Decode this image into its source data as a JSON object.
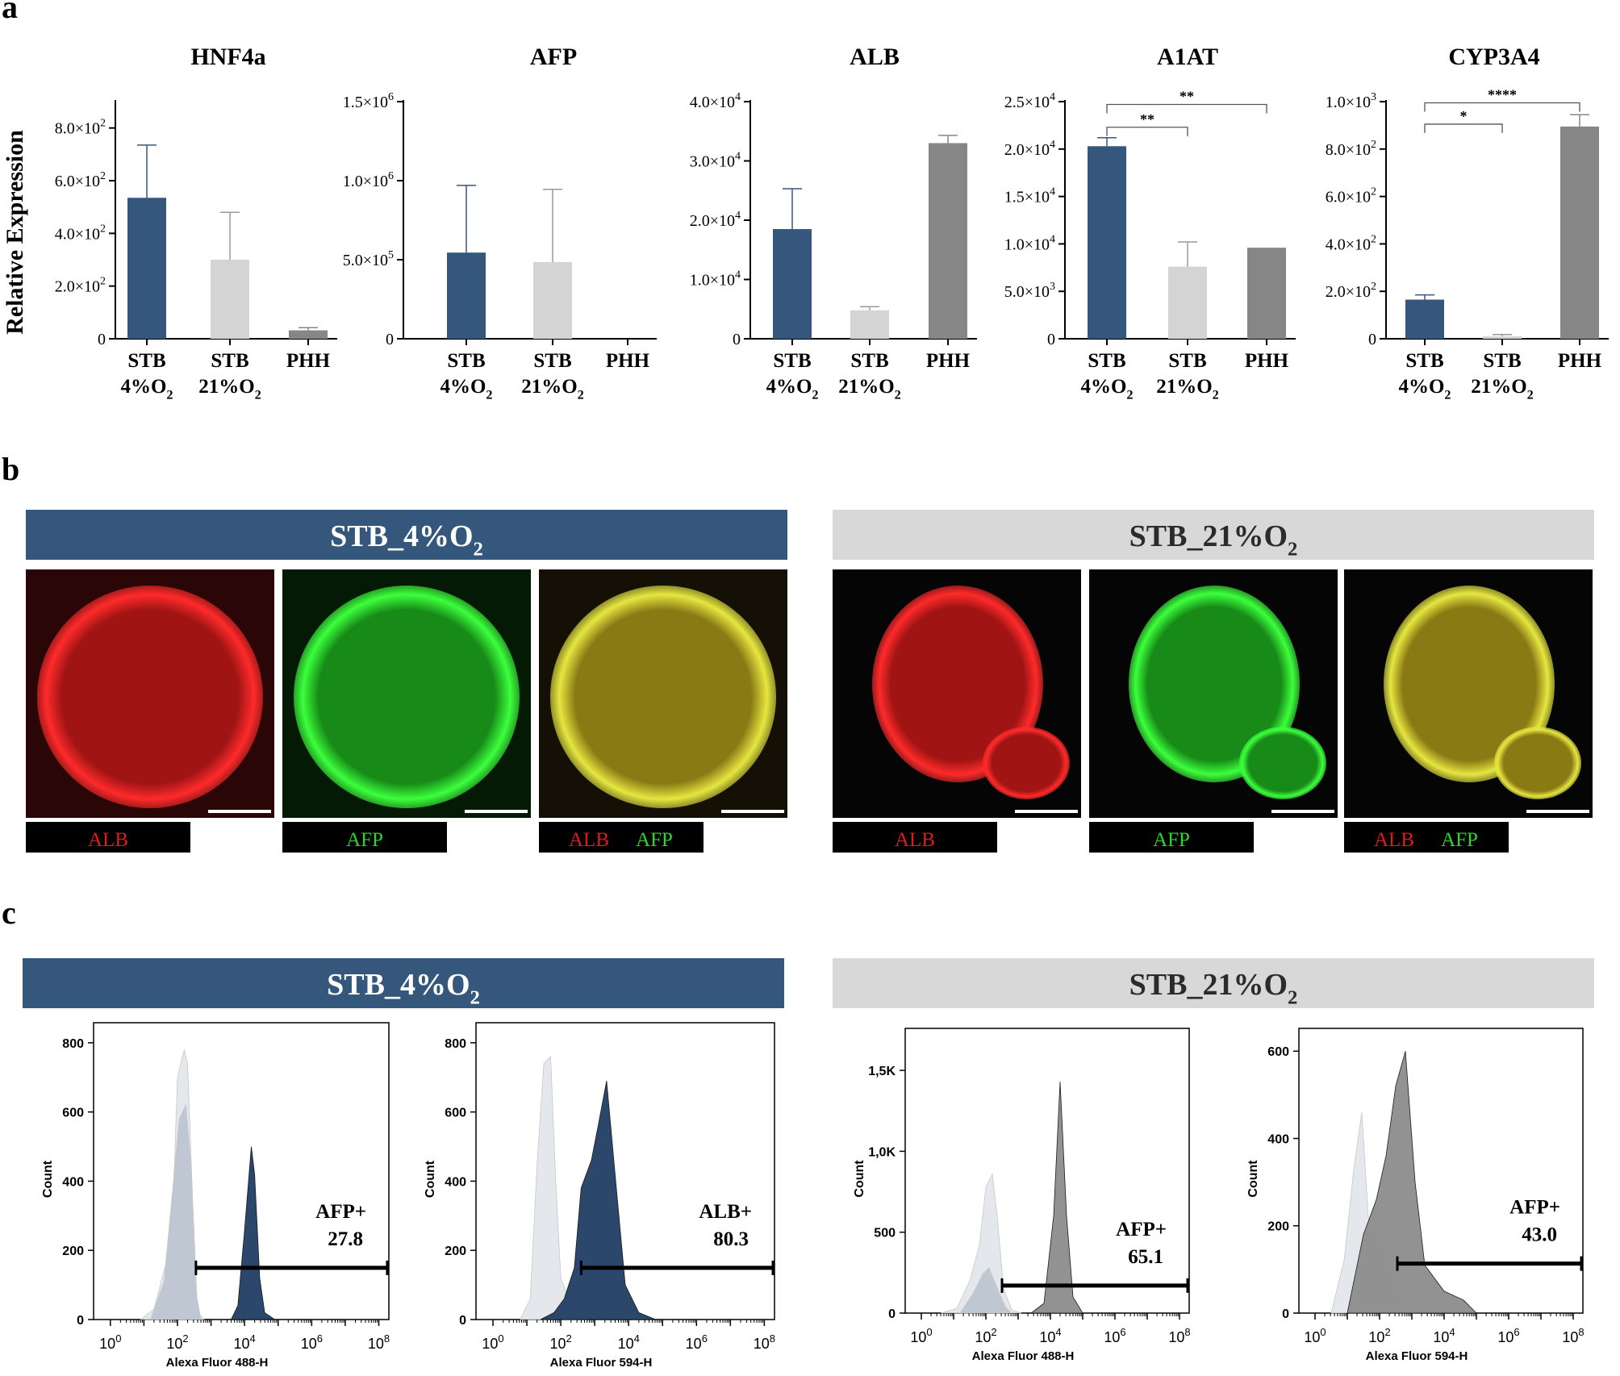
{
  "panel_letters": [
    "a",
    "b",
    "c"
  ],
  "colors": {
    "stb4": "#35577c",
    "stb21": "#d4d4d4",
    "phh": "#868686",
    "stb21_header": "#d8d8d8",
    "header_text_dark": "#2b2b2b",
    "alb_red": "#e41a1a",
    "afp_green": "#2bd62b",
    "hist_control": "#c9d0d8",
    "hist_fill_stb4": "#203e64",
    "hist_fill_stb21": "#8c8c8c"
  },
  "panel_a": {
    "ylabel": "Relative Expression",
    "xlabels": [
      {
        "name": "STB",
        "sub": "4%O",
        "subscript": "2"
      },
      {
        "name": "STB",
        "sub": "21%O",
        "subscript": "2"
      },
      {
        "name": "PHH",
        "sub": "",
        "subscript": ""
      }
    ]
  },
  "panel_b": {
    "headers": [
      {
        "text": "STB_4%O",
        "subscript": "2"
      },
      {
        "text": "STB_21%O",
        "subscript": "2"
      }
    ],
    "image_labels": [
      [
        "ALB"
      ],
      [
        "AFP"
      ],
      [
        "ALB",
        "AFP"
      ],
      [
        "ALB"
      ],
      [
        "AFP"
      ],
      [
        "ALB",
        "AFP"
      ]
    ]
  },
  "panel_c": {
    "headers": [
      {
        "text": "STB_4%O",
        "subscript": "2"
      },
      {
        "text": "STB_21%O",
        "subscript": "2"
      }
    ],
    "ylabel": "Count"
  },
  "chart_data": [
    {
      "type": "bar",
      "title": "HNF4a",
      "ylabel": "Relative Expression",
      "categories": [
        "STB 4%O2",
        "STB 21%O2",
        "PHH"
      ],
      "values": [
        535,
        300,
        32
      ],
      "errors": [
        200,
        180,
        10
      ],
      "ylim": [
        0,
        900
      ],
      "yticks": [
        0,
        200,
        400,
        600,
        800
      ],
      "ytick_labels": [
        [
          "0",
          ""
        ],
        [
          "2.0×10",
          "2"
        ],
        [
          "4.0×10",
          "2"
        ],
        [
          "6.0×10",
          "2"
        ],
        [
          "8.0×10",
          "2"
        ]
      ],
      "significance": []
    },
    {
      "type": "bar",
      "title": "AFP",
      "categories": [
        "STB 4%O2",
        "STB 21%O2",
        "PHH"
      ],
      "values": [
        545000,
        485000,
        0
      ],
      "errors": [
        425000,
        460000,
        0
      ],
      "ylim": [
        0,
        1500000
      ],
      "yticks": [
        0,
        500000,
        1000000,
        1500000
      ],
      "ytick_labels": [
        [
          "0",
          ""
        ],
        [
          "5.0×10",
          "5"
        ],
        [
          "1.0×10",
          "6"
        ],
        [
          "1.5×10",
          "6"
        ]
      ],
      "significance": []
    },
    {
      "type": "bar",
      "title": "ALB",
      "categories": [
        "STB 4%O2",
        "STB 21%O2",
        "PHH"
      ],
      "values": [
        18500,
        4800,
        33000
      ],
      "errors": [
        6800,
        600,
        1300
      ],
      "ylim": [
        0,
        40000
      ],
      "yticks": [
        0,
        10000,
        20000,
        30000,
        40000
      ],
      "ytick_labels": [
        [
          "0",
          ""
        ],
        [
          "1.0×10",
          "4"
        ],
        [
          "2.0×10",
          "4"
        ],
        [
          "3.0×10",
          "4"
        ],
        [
          "4.0×10",
          "4"
        ]
      ],
      "significance": []
    },
    {
      "type": "bar",
      "title": "A1AT",
      "categories": [
        "STB 4%O2",
        "STB 21%O2",
        "PHH"
      ],
      "values": [
        20300,
        7600,
        9600
      ],
      "errors": [
        900,
        2600,
        0
      ],
      "ylim": [
        0,
        25000
      ],
      "yticks": [
        0,
        5000,
        10000,
        15000,
        20000,
        25000
      ],
      "ytick_labels": [
        [
          "0",
          ""
        ],
        [
          "5.0×10",
          "3"
        ],
        [
          "1.0×10",
          "4"
        ],
        [
          "1.5×10",
          "4"
        ],
        [
          "2.0×10",
          "4"
        ],
        [
          "2.5×10",
          "4"
        ]
      ],
      "significance": [
        {
          "from": 0,
          "to": 1,
          "label": "**",
          "level": 22300
        },
        {
          "from": 0,
          "to": 2,
          "label": "**",
          "level": 24700
        }
      ]
    },
    {
      "type": "bar",
      "title": "CYP3A4",
      "categories": [
        "STB 4%O2",
        "STB 21%O2",
        "PHH"
      ],
      "values": [
        165,
        10,
        895
      ],
      "errors": [
        20,
        8,
        50
      ],
      "ylim": [
        0,
        1000
      ],
      "yticks": [
        0,
        200,
        400,
        600,
        800,
        1000
      ],
      "ytick_labels": [
        [
          "0",
          ""
        ],
        [
          "2.0×10",
          "2"
        ],
        [
          "4.0×10",
          "2"
        ],
        [
          "6.0×10",
          "2"
        ],
        [
          "8.0×10",
          "2"
        ],
        [
          "1.0×10",
          "3"
        ]
      ],
      "significance": [
        {
          "from": 0,
          "to": 1,
          "label": "*",
          "level": 905
        },
        {
          "from": 0,
          "to": 2,
          "label": "****",
          "level": 995
        }
      ]
    },
    {
      "type": "area",
      "xlabel": "Alexa Fluor 488-H",
      "ylabel": "Count",
      "xlim": [
        -0.5,
        8.3
      ],
      "ylim": [
        0,
        830
      ],
      "yticks": [
        0,
        200,
        400,
        600,
        800
      ],
      "ytick_labels": [
        "0",
        "200",
        "400",
        "600",
        "800"
      ],
      "gate_label": "AFP+",
      "gate_value": "27.8",
      "gate_range": [
        2.55,
        8.25
      ],
      "series": [
        {
          "role": "control",
          "points": [
            [
              0.9,
              0
            ],
            [
              1.3,
              30
            ],
            [
              1.7,
              180
            ],
            [
              1.9,
              420
            ],
            [
              2.0,
              700
            ],
            [
              2.2,
              780
            ],
            [
              2.3,
              740
            ],
            [
              2.45,
              350
            ],
            [
              2.6,
              20
            ],
            [
              2.8,
              0
            ]
          ]
        },
        {
          "role": "control2",
          "points": [
            [
              1.2,
              0
            ],
            [
              1.6,
              110
            ],
            [
              1.9,
              420
            ],
            [
              2.05,
              580
            ],
            [
              2.25,
              620
            ],
            [
              2.4,
              450
            ],
            [
              2.55,
              80
            ],
            [
              2.7,
              0
            ]
          ]
        },
        {
          "role": "sample",
          "points": [
            [
              3.6,
              0
            ],
            [
              3.8,
              40
            ],
            [
              4.0,
              260
            ],
            [
              4.2,
              500
            ],
            [
              4.3,
              420
            ],
            [
              4.45,
              120
            ],
            [
              4.6,
              20
            ],
            [
              4.9,
              0
            ]
          ]
        }
      ]
    },
    {
      "type": "area",
      "xlabel": "Alexa Fluor 594-H",
      "ylabel": "Count",
      "xlim": [
        -0.5,
        8.3
      ],
      "ylim": [
        0,
        830
      ],
      "yticks": [
        0,
        200,
        400,
        600,
        800
      ],
      "ytick_labels": [
        "0",
        "200",
        "400",
        "600",
        "800"
      ],
      "gate_label": "ALB+",
      "gate_value": "80.3",
      "gate_range": [
        2.6,
        8.3
      ],
      "series": [
        {
          "role": "control",
          "points": [
            [
              0.8,
              0
            ],
            [
              1.1,
              60
            ],
            [
              1.3,
              450
            ],
            [
              1.5,
              740
            ],
            [
              1.7,
              760
            ],
            [
              1.85,
              400
            ],
            [
              2.0,
              120
            ],
            [
              2.4,
              20
            ],
            [
              2.8,
              0
            ]
          ]
        },
        {
          "role": "sample",
          "points": [
            [
              1.4,
              0
            ],
            [
              1.8,
              20
            ],
            [
              2.1,
              60
            ],
            [
              2.4,
              150
            ],
            [
              2.6,
              380
            ],
            [
              2.9,
              460
            ],
            [
              3.1,
              560
            ],
            [
              3.35,
              690
            ],
            [
              3.6,
              420
            ],
            [
              3.9,
              100
            ],
            [
              4.3,
              20
            ],
            [
              4.8,
              0
            ]
          ]
        }
      ]
    },
    {
      "type": "area",
      "xlabel": "Alexa Fluor 488-H",
      "ylabel": "Count",
      "xlim": [
        -0.5,
        8.3
      ],
      "ylim": [
        0,
        1700
      ],
      "yticks": [
        0,
        500,
        1000,
        1500
      ],
      "ytick_labels": [
        "0",
        "500",
        "1,0K",
        "1,5K"
      ],
      "gate_label": "AFP+",
      "gate_value": "65.1",
      "gate_range": [
        2.5,
        8.3
      ],
      "series": [
        {
          "role": "control",
          "points": [
            [
              0.6,
              0
            ],
            [
              1.1,
              30
            ],
            [
              1.5,
              200
            ],
            [
              1.8,
              420
            ],
            [
              2.0,
              780
            ],
            [
              2.2,
              860
            ],
            [
              2.35,
              600
            ],
            [
              2.55,
              150
            ],
            [
              2.8,
              20
            ],
            [
              3.1,
              0
            ]
          ]
        },
        {
          "role": "control2",
          "points": [
            [
              1.2,
              0
            ],
            [
              1.6,
              120
            ],
            [
              1.9,
              240
            ],
            [
              2.1,
              280
            ],
            [
              2.3,
              180
            ],
            [
              2.6,
              40
            ],
            [
              2.8,
              0
            ]
          ]
        },
        {
          "role": "sample",
          "points": [
            [
              3.4,
              0
            ],
            [
              3.8,
              60
            ],
            [
              4.1,
              600
            ],
            [
              4.3,
              1430
            ],
            [
              4.5,
              600
            ],
            [
              4.7,
              100
            ],
            [
              5.0,
              0
            ]
          ]
        }
      ]
    },
    {
      "type": "area",
      "xlabel": "Alexa Fluor 594-H",
      "ylabel": "Count",
      "xlim": [
        -0.5,
        8.3
      ],
      "ylim": [
        0,
        630
      ],
      "yticks": [
        0,
        200,
        400,
        600
      ],
      "ytick_labels": [
        "0",
        "200",
        "400",
        "600"
      ],
      "gate_label": "AFP+",
      "gate_value": "43.0",
      "gate_range": [
        2.55,
        8.3
      ],
      "series": [
        {
          "role": "control",
          "points": [
            [
              0.5,
              0
            ],
            [
              0.9,
              120
            ],
            [
              1.2,
              330
            ],
            [
              1.45,
              460
            ],
            [
              1.65,
              220
            ],
            [
              1.95,
              180
            ],
            [
              2.3,
              90
            ],
            [
              2.7,
              20
            ],
            [
              3.1,
              0
            ]
          ]
        },
        {
          "role": "sample",
          "points": [
            [
              1.0,
              0
            ],
            [
              1.5,
              180
            ],
            [
              1.9,
              260
            ],
            [
              2.2,
              360
            ],
            [
              2.5,
              520
            ],
            [
              2.8,
              600
            ],
            [
              3.1,
              300
            ],
            [
              3.4,
              110
            ],
            [
              4.0,
              50
            ],
            [
              4.6,
              30
            ],
            [
              5.0,
              0
            ]
          ]
        }
      ]
    }
  ]
}
